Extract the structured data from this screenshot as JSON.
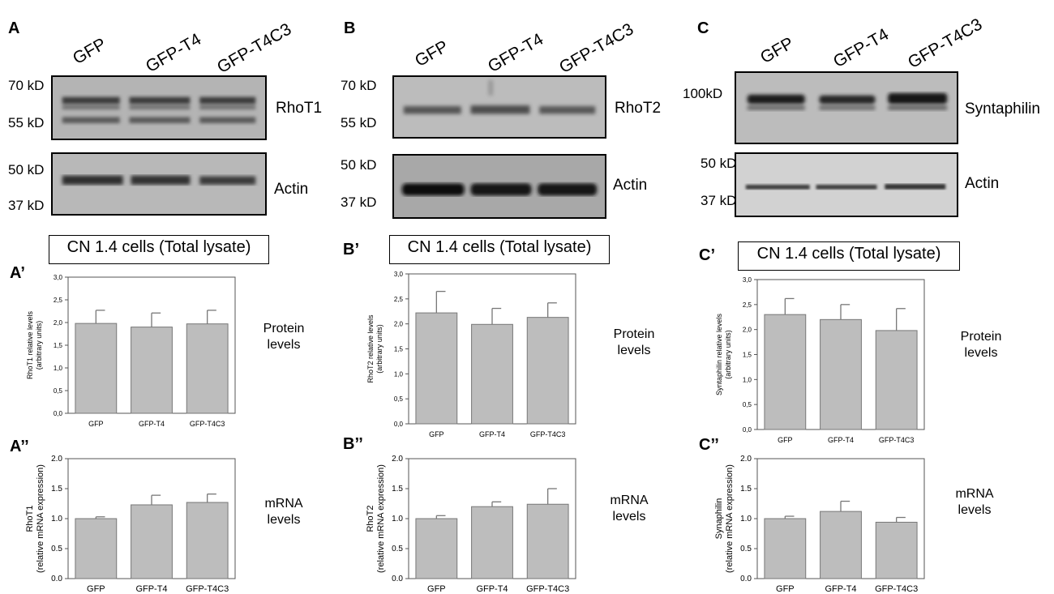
{
  "panels": [
    {
      "letter": "A",
      "lanes": [
        "GFP",
        "GFP-T4",
        "GFP-T4C3"
      ],
      "blot_top": {
        "name": "RhoT1",
        "mw": [
          "70 kD",
          "55 kD"
        ]
      },
      "blot_bottom": {
        "name": "Actin",
        "mw": [
          "50 kD",
          "37 kD"
        ]
      },
      "lysate_title": "CN 1.4 cells (Total lysate)",
      "protein": {
        "label": "A’",
        "side_label": [
          "Protein",
          "levels"
        ],
        "chart_data": {
          "type": "bar",
          "categories": [
            "GFP",
            "GFP-T4",
            "GFP-T4C3"
          ],
          "values": [
            1.98,
            1.9,
            1.97
          ],
          "errors": [
            0.29,
            0.31,
            0.3
          ],
          "ylabel": [
            "RhoT1 relative levels",
            "(arbitrary units)"
          ],
          "ylim": [
            0,
            3
          ],
          "yticks": [
            "0,0",
            "0,5",
            "1,0",
            "1,5",
            "2,0",
            "2,5",
            "3,0"
          ]
        }
      },
      "mrna": {
        "label": "A’’",
        "side_label": [
          "mRNA",
          "levels"
        ],
        "chart_data": {
          "type": "bar",
          "categories": [
            "GFP",
            "GFP-T4",
            "GFP-T4C3"
          ],
          "values": [
            1.0,
            1.23,
            1.27
          ],
          "errors": [
            0.03,
            0.16,
            0.14
          ],
          "ylabel": [
            "RhoT1",
            "(relative mRNA expression)"
          ],
          "ylim": [
            0,
            2
          ],
          "yticks": [
            "0.0",
            "0.5",
            "1.0",
            "1.5",
            "2.0"
          ]
        }
      }
    },
    {
      "letter": "B",
      "lanes": [
        "GFP",
        "GFP-T4",
        "GFP-T4C3"
      ],
      "blot_top": {
        "name": "RhoT2",
        "mw": [
          "70 kD",
          "55 kD"
        ]
      },
      "blot_bottom": {
        "name": "Actin",
        "mw": [
          "50 kD",
          "37 kD"
        ]
      },
      "lysate_title": "CN 1.4 cells (Total lysate)",
      "protein": {
        "label": "B’",
        "side_label": [
          "Protein",
          "levels"
        ],
        "chart_data": {
          "type": "bar",
          "categories": [
            "GFP",
            "GFP-T4",
            "GFP-T4C3"
          ],
          "values": [
            2.22,
            1.99,
            2.13
          ],
          "errors": [
            0.43,
            0.32,
            0.29
          ],
          "ylabel": [
            "RhoT2 relative levels",
            "(arbitrary units)"
          ],
          "ylim": [
            0,
            3
          ],
          "yticks": [
            "0,0",
            "0,5",
            "1,0",
            "1,5",
            "2,0",
            "2,5",
            "3,0"
          ]
        }
      },
      "mrna": {
        "label": "B’’",
        "side_label": [
          "mRNA",
          "levels"
        ],
        "chart_data": {
          "type": "bar",
          "categories": [
            "GFP",
            "GFP-T4",
            "GFP-T4C3"
          ],
          "values": [
            1.0,
            1.2,
            1.24
          ],
          "errors": [
            0.05,
            0.08,
            0.26
          ],
          "ylabel": [
            "RhoT2",
            "(relative mRNA expression)"
          ],
          "ylim": [
            0,
            2
          ],
          "yticks": [
            "0.0",
            "0.5",
            "1.0",
            "1.5",
            "2.0"
          ]
        }
      }
    },
    {
      "letter": "C",
      "lanes": [
        "GFP",
        "GFP-T4",
        "GFP-T4C3"
      ],
      "blot_top": {
        "name": "Syntaphilin",
        "mw": [
          "100kD"
        ]
      },
      "blot_bottom": {
        "name": "Actin",
        "mw": [
          "50 kD",
          "37 kD"
        ]
      },
      "lysate_title": "CN 1.4 cells (Total lysate)",
      "protein": {
        "label": "C’",
        "side_label": [
          "Protein",
          "levels"
        ],
        "chart_data": {
          "type": "bar",
          "categories": [
            "GFP",
            "GFP-T4",
            "GFP-T4C3"
          ],
          "values": [
            2.3,
            2.2,
            1.98
          ],
          "errors": [
            0.32,
            0.3,
            0.44
          ],
          "ylabel": [
            "Syntaphilin relative levels",
            "(arbitrary units)"
          ],
          "ylim": [
            0,
            3
          ],
          "yticks": [
            "0,0",
            "0,5",
            "1,0",
            "1,5",
            "2,0",
            "2,5",
            "3,0"
          ]
        }
      },
      "mrna": {
        "label": "C’’",
        "side_label": [
          "mRNA",
          "levels"
        ],
        "chart_data": {
          "type": "bar",
          "categories": [
            "GFP",
            "GFP-T4",
            "GFP-T4C3"
          ],
          "values": [
            1.0,
            1.12,
            0.94
          ],
          "errors": [
            0.04,
            0.17,
            0.08
          ],
          "ylabel": [
            "Synaphilin",
            "(relative mRNA expression)"
          ],
          "ylim": [
            0,
            2
          ],
          "yticks": [
            "0.0",
            "0.5",
            "1.0",
            "1.5",
            "2.0"
          ]
        }
      }
    }
  ]
}
